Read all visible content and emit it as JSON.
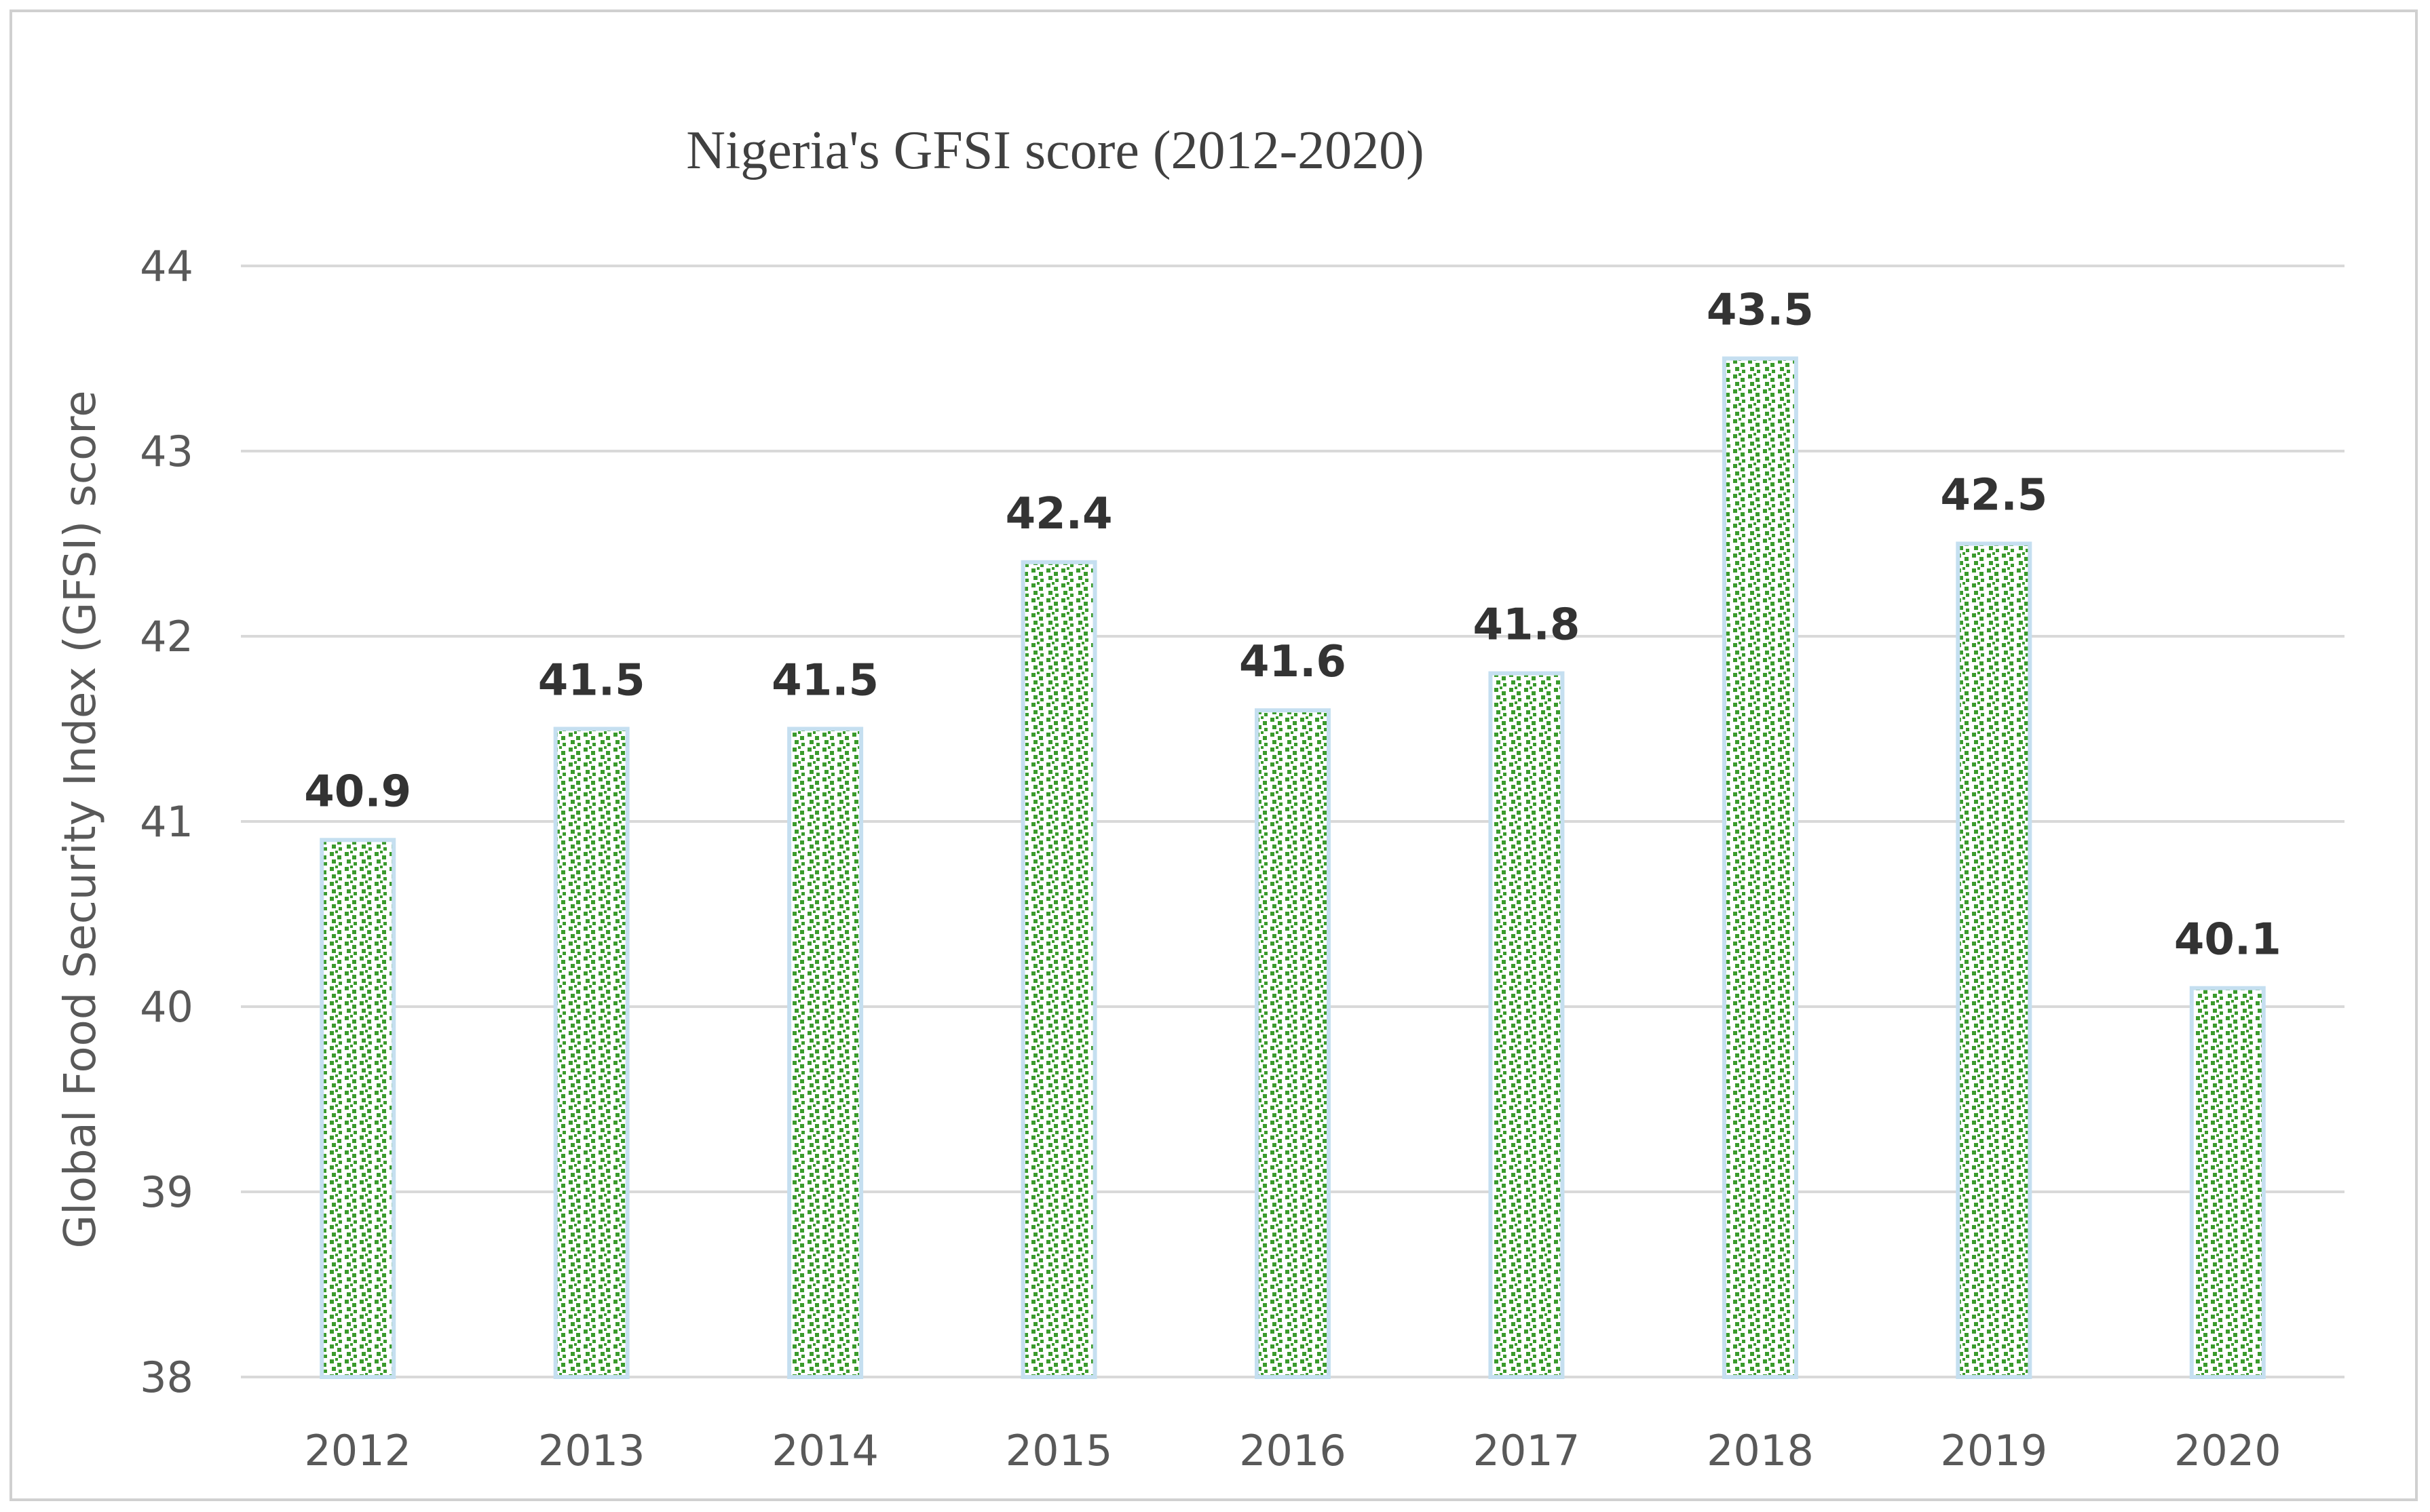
{
  "chart_data": {
    "type": "bar",
    "title": "Nigeria's GFSI score (2012-2020)",
    "xlabel": "",
    "ylabel": "Global Food Security Index (GFSI) score",
    "categories": [
      "2012",
      "2013",
      "2014",
      "2015",
      "2016",
      "2017",
      "2018",
      "2019",
      "2020"
    ],
    "values": [
      40.9,
      41.5,
      41.5,
      42.4,
      41.6,
      41.8,
      43.5,
      42.5,
      40.1
    ],
    "data_labels": [
      "40.9",
      "41.5",
      "41.5",
      "42.4",
      "41.6",
      "41.8",
      "43.5",
      "42.5",
      "40.1"
    ],
    "ylim": [
      38,
      44
    ],
    "yticks": [
      38,
      39,
      40,
      41,
      42,
      43,
      44
    ],
    "ytick_labels": [
      "38",
      "39",
      "40",
      "41",
      "42",
      "43",
      "44"
    ],
    "grid": true,
    "legend": "none",
    "colors": {
      "bar_fill_dots": "#3a9a2c",
      "bar_outline": "#c5dff0",
      "bar_background": "#ffffff",
      "gridline": "#d9d9d9",
      "frame": "#d0d0d0"
    }
  }
}
